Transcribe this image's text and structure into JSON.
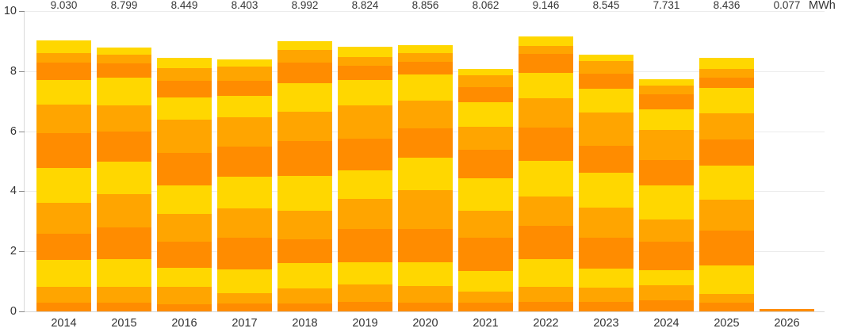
{
  "chart_data": {
    "type": "bar",
    "stacked": true,
    "title": "",
    "unit": "MWh",
    "xlabel": "",
    "ylabel": "",
    "ylim": [
      0,
      10
    ],
    "y_ticks": [
      0,
      2,
      4,
      6,
      8,
      10
    ],
    "grid": true,
    "legend": "none",
    "categories": [
      "2014",
      "2015",
      "2016",
      "2017",
      "2018",
      "2019",
      "2020",
      "2021",
      "2022",
      "2023",
      "2024",
      "2025",
      "2026"
    ],
    "totals": [
      9.03,
      8.799,
      8.449,
      8.403,
      8.992,
      8.824,
      8.856,
      8.062,
      9.146,
      8.545,
      7.731,
      8.436,
      0.077
    ],
    "total_labels": [
      "9.030",
      "8.799",
      "8.449",
      "8.403",
      "8.992",
      "8.824",
      "8.856",
      "8.062",
      "9.146",
      "8.545",
      "7.731",
      "8.436",
      "0.077"
    ],
    "segment_color_cycle_bottom_to_top": [
      "#FF8C00",
      "#FFA500",
      "#FFD700"
    ],
    "segments_bottom_to_top": [
      [
        0.279,
        0.529,
        0.913,
        0.86,
        1.035,
        1.147,
        1.173,
        0.946,
        0.816,
        0.584,
        0.321,
        0.427
      ],
      [
        0.298,
        0.517,
        0.925,
        1.044,
        1.133,
        1.064,
        1.014,
        0.875,
        0.905,
        0.477,
        0.288,
        0.259
      ],
      [
        0.229,
        0.577,
        0.656,
        0.855,
        0.934,
        0.944,
        1.093,
        1.103,
        0.745,
        0.537,
        0.427,
        0.349
      ],
      [
        0.258,
        0.357,
        0.794,
        1.042,
        0.972,
        1.062,
        1.002,
        0.972,
        0.714,
        0.516,
        0.456,
        0.258
      ],
      [
        0.259,
        0.517,
        0.826,
        0.786,
        0.965,
        1.164,
        1.164,
        0.965,
        0.955,
        0.696,
        0.418,
        0.277
      ],
      [
        0.318,
        0.566,
        0.754,
        1.112,
        1.003,
        0.933,
        1.072,
        1.102,
        0.834,
        0.476,
        0.308,
        0.346
      ],
      [
        0.297,
        0.555,
        0.783,
        1.109,
        1.288,
        1.09,
        0.971,
        0.931,
        0.852,
        0.436,
        0.297,
        0.247
      ],
      [
        0.299,
        0.348,
        0.687,
        1.124,
        0.896,
        1.085,
        0.955,
        0.756,
        0.816,
        0.507,
        0.388,
        0.201
      ],
      [
        0.318,
        0.498,
        0.935,
        1.095,
        0.975,
        1.204,
        1.095,
        0.975,
        0.836,
        0.647,
        0.269,
        0.299
      ],
      [
        0.327,
        0.466,
        0.634,
        1.021,
        1.011,
        1.16,
        0.892,
        1.11,
        0.793,
        0.506,
        0.406,
        0.219
      ],
      [
        0.358,
        0.498,
        0.507,
        0.955,
        0.746,
        1.134,
        0.846,
        1.005,
        0.677,
        0.498,
        0.308,
        0.199
      ],
      [
        0.298,
        0.278,
        0.954,
        1.153,
        1.043,
        1.133,
        0.855,
        0.894,
        0.825,
        0.358,
        0.278,
        0.367
      ],
      [
        0.077
      ]
    ]
  },
  "colors": {
    "segment_dark_orange": "#FF8C00",
    "segment_orange": "#FFA500",
    "segment_yellow": "#FFD700",
    "gridline": "#ECECEC",
    "baseline": "#D8D8D8",
    "axis_line": "#D9D9D9",
    "tick": "#8A8A8A",
    "label_text": "#333333",
    "background": "#FFFFFF"
  }
}
